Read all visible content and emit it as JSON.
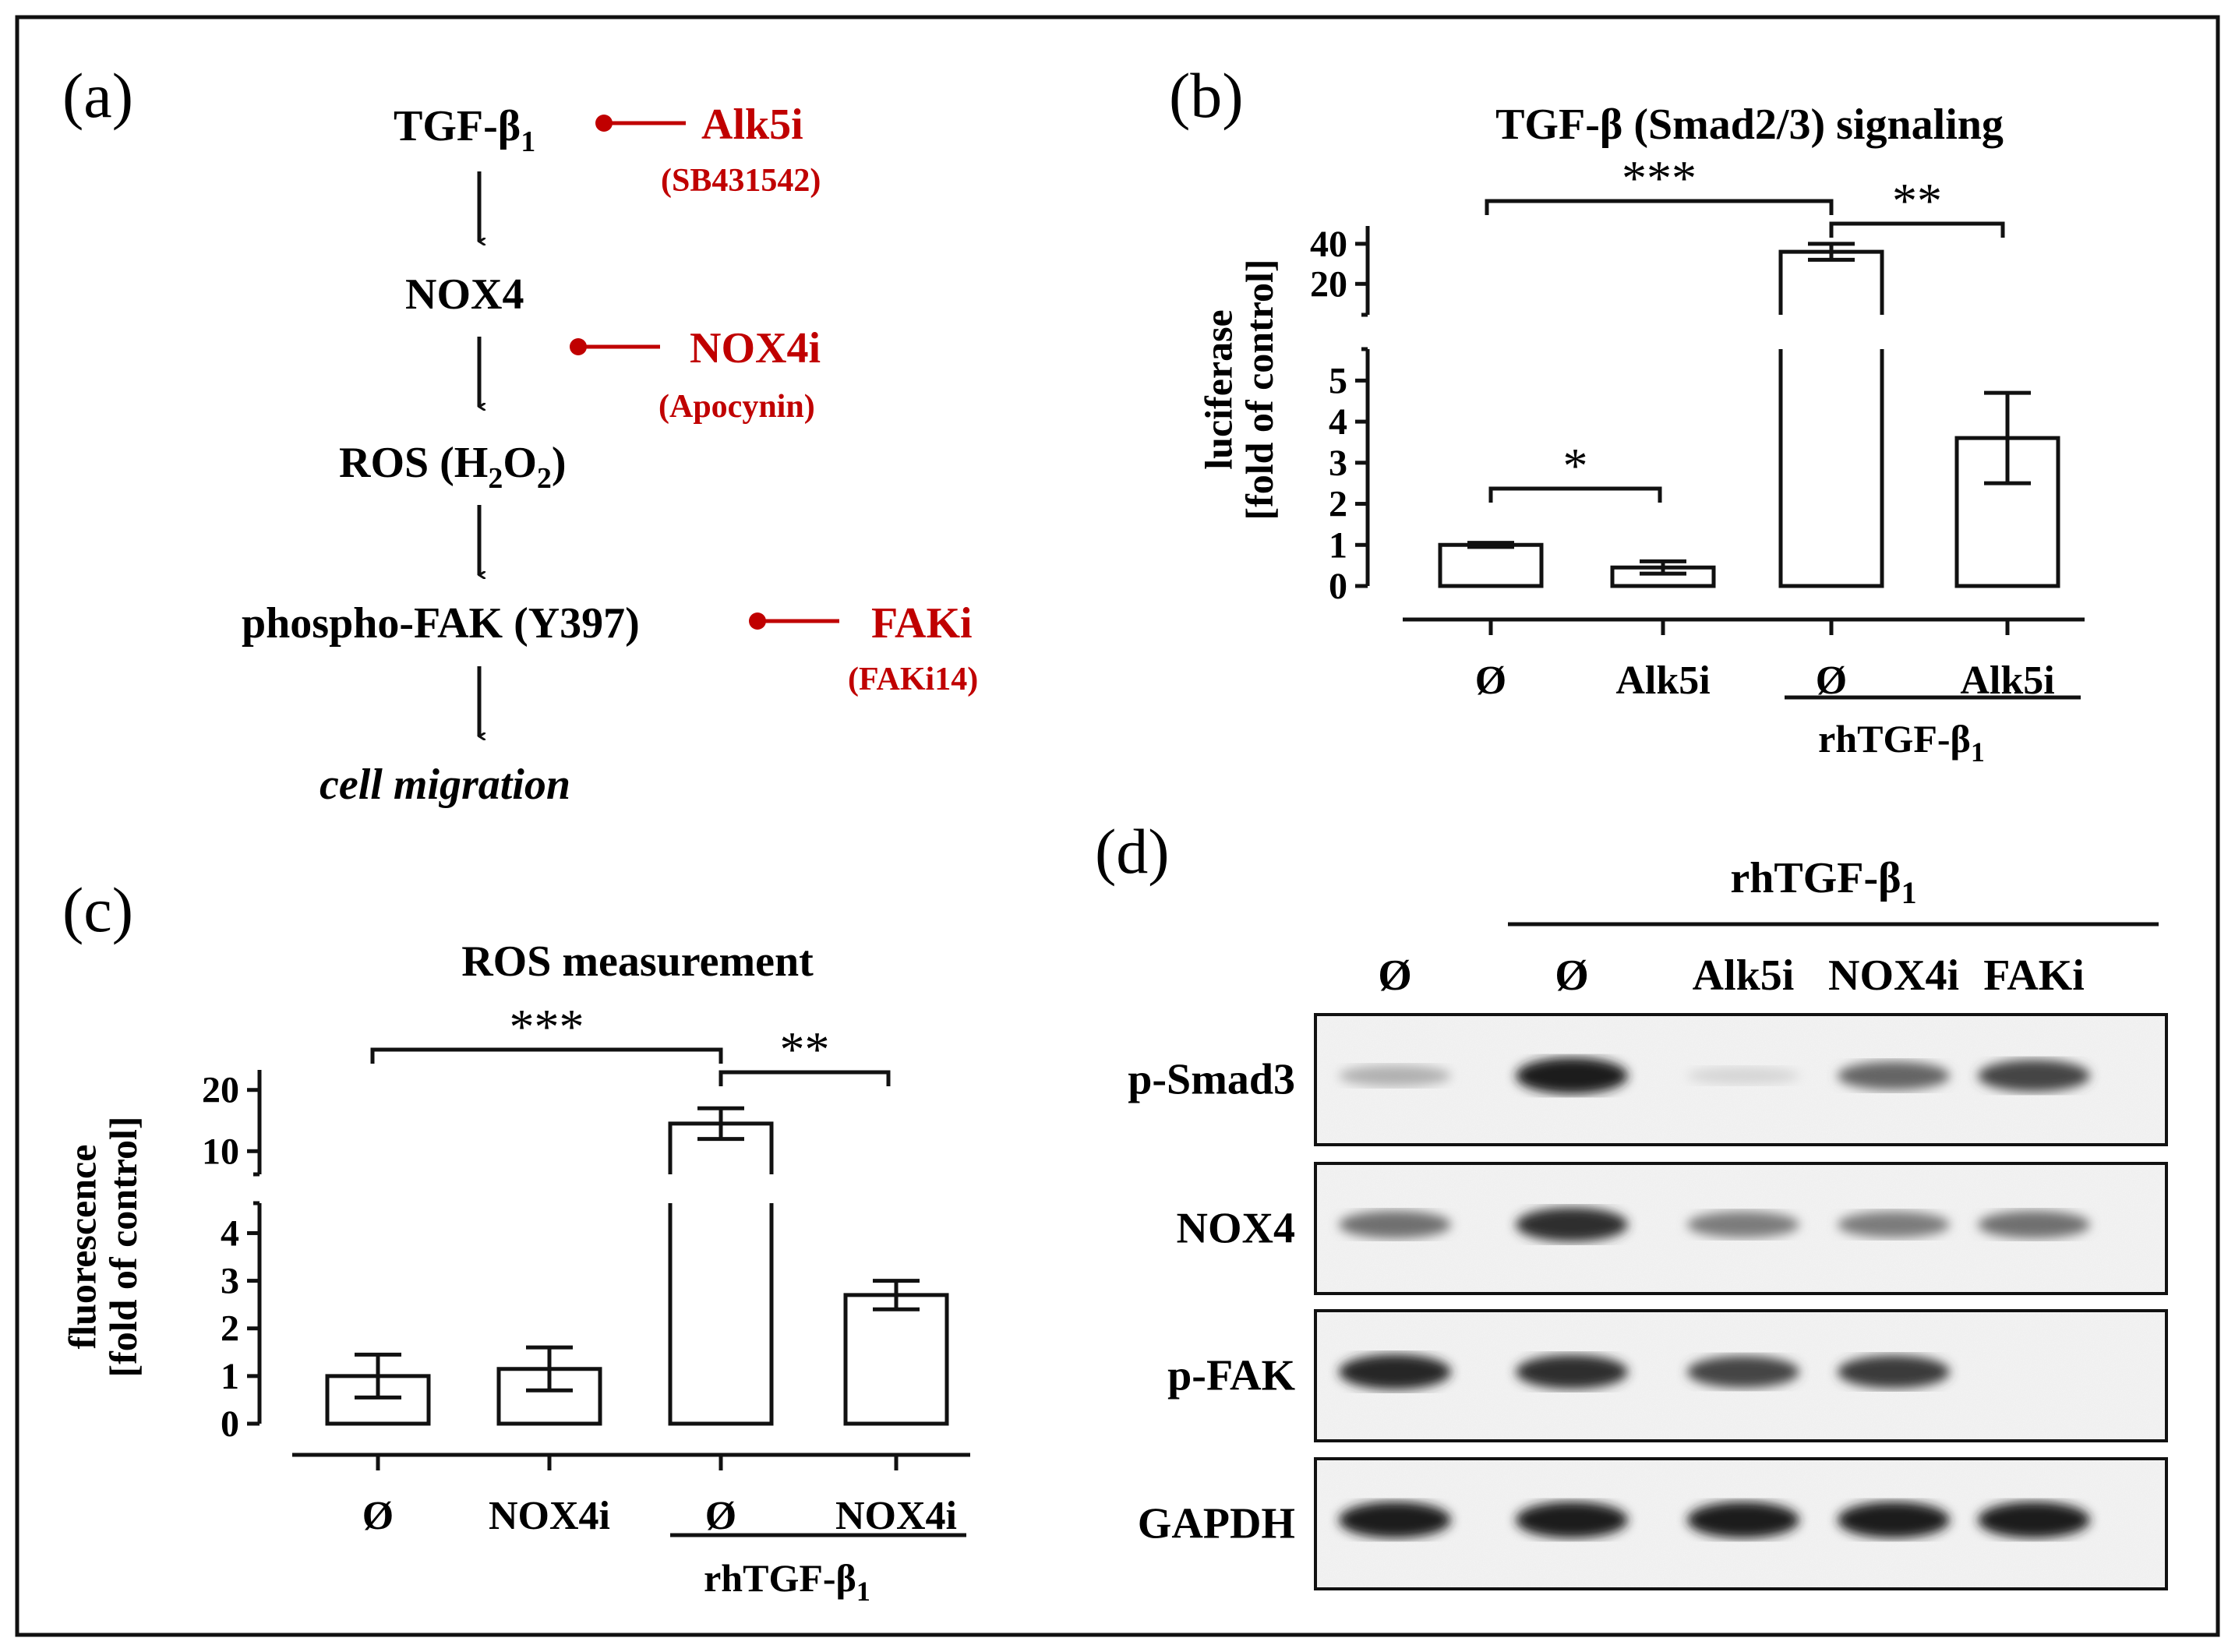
{
  "colors": {
    "text": "#111111",
    "inhibitor": "#c00000",
    "frame": "#111111",
    "bar_fill": "#ffffff"
  },
  "panel_a": {
    "label": "(a)",
    "pathway": [
      {
        "text": "TGF-β",
        "sub": "1"
      },
      {
        "text": "NOX4"
      },
      {
        "text": "ROS (H",
        "sub1": "2",
        "mid": "O",
        "sub2": "2",
        "end": ")"
      },
      {
        "text": "phospho-FAK (Y397)"
      },
      {
        "text": "cell migration"
      }
    ],
    "inhibitors": [
      {
        "name": "Alk5i",
        "compound": "(SB431542)"
      },
      {
        "name": "NOX4i",
        "compound": "(Apocynin)"
      },
      {
        "name": "FAKi",
        "compound": "(FAKi14)"
      }
    ]
  },
  "panel_b": {
    "label": "(b)",
    "significance": [
      "***",
      "**",
      "*"
    ],
    "treatment_label": "rhTGF-β",
    "treatment_sub": "1"
  },
  "panel_c": {
    "label": "(c)",
    "significance": [
      "***",
      "**"
    ],
    "treatment_label": "rhTGF-β",
    "treatment_sub": "1"
  },
  "panel_d": {
    "label": "(d)",
    "treatment_label": "rhTGF-β",
    "treatment_sub": "1",
    "lanes": [
      "Ø",
      "Ø",
      "Alk5i",
      "NOX4i",
      "FAKi"
    ],
    "blots": [
      {
        "protein": "p-Smad3",
        "intensity": [
          0.25,
          0.95,
          0.08,
          0.6,
          0.75
        ]
      },
      {
        "protein": "NOX4",
        "intensity": [
          0.55,
          0.85,
          0.5,
          0.5,
          0.55
        ]
      },
      {
        "protein": "p-FAK",
        "intensity": [
          0.9,
          0.85,
          0.75,
          0.8,
          0.0
        ]
      },
      {
        "protein": "GAPDH",
        "intensity": [
          0.95,
          0.95,
          0.95,
          0.95,
          0.95
        ]
      }
    ]
  },
  "chart_data": [
    {
      "type": "bar",
      "title": "TGF-β (Smad2/3) signaling",
      "ylabel": "luciferase [fold of control]",
      "categories": [
        "Ø",
        "Alk5i",
        "Ø",
        "Alk5i"
      ],
      "values": [
        1.0,
        0.45,
        36,
        3.6
      ],
      "errors": [
        0.05,
        0.15,
        4,
        1.1
      ],
      "yaxis_lower_ticks": [
        0,
        1,
        2,
        3,
        4,
        5
      ],
      "yaxis_upper_ticks": [
        20,
        40
      ],
      "ylim_lower": [
        0,
        5.5
      ],
      "ylim_upper": [
        10,
        45
      ],
      "broken_axis": true
    },
    {
      "type": "bar",
      "title": "ROS measurement",
      "ylabel": "fluorescence [fold of control]",
      "categories": [
        "Ø",
        "NOX4i",
        "Ø",
        "NOX4i"
      ],
      "values": [
        1.0,
        1.15,
        14.5,
        2.7
      ],
      "errors": [
        0.45,
        0.45,
        2.5,
        0.3
      ],
      "yaxis_lower_ticks": [
        0,
        1,
        2,
        3,
        4
      ],
      "yaxis_upper_ticks": [
        10,
        20
      ],
      "ylim_lower": [
        0,
        4.4
      ],
      "ylim_upper": [
        8,
        22
      ],
      "broken_axis": true
    }
  ]
}
